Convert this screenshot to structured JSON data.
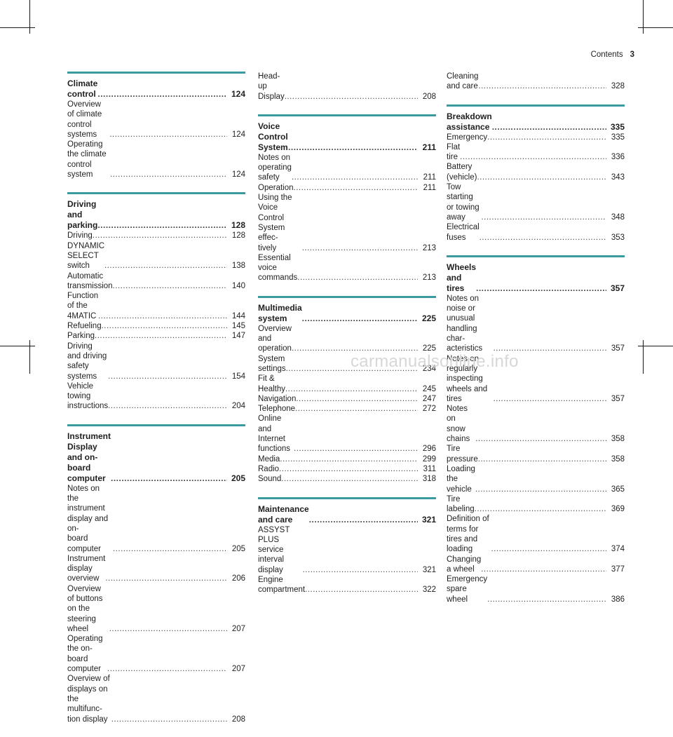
{
  "header": {
    "title": "Contents",
    "page": "3"
  },
  "columns": [
    [
      {
        "bar": true,
        "entries": [
          {
            "text": "Climate control",
            "page": "124",
            "bold": true
          },
          {
            "text": "Overview of climate control systems",
            "page": "124"
          },
          {
            "text": "Operating the climate control system",
            "page": "124"
          }
        ]
      },
      {
        "bar": true,
        "entries": [
          {
            "text": "Driving and parking",
            "page": "128",
            "bold": true
          },
          {
            "text": "Driving",
            "page": "128"
          },
          {
            "text": "DYNAMIC SELECT switch",
            "page": "138"
          },
          {
            "text": "Automatic transmission",
            "page": "140"
          },
          {
            "text": "Function of the 4MATIC",
            "page": "144"
          },
          {
            "text": "Refueling",
            "page": "145"
          },
          {
            "text": "Parking",
            "page": "147"
          },
          {
            "text": "Driving and driving safety systems",
            "page": "154"
          },
          {
            "text": "Vehicle towing instructions",
            "page": "204"
          }
        ]
      },
      {
        "bar": true,
        "entries": [
          {
            "text": "Instrument Display and on-board\ncomputer",
            "page": "205",
            "bold": true
          },
          {
            "text": "Notes on the instrument display and on-\nboard computer",
            "page": "205"
          },
          {
            "text": "Instrument display overview",
            "page": "206"
          },
          {
            "text": "Overview of buttons on the steering\nwheel",
            "page": "207"
          },
          {
            "text": "Operating the on-board computer",
            "page": "207"
          },
          {
            "text": "Overview of displays on the multifunc-\ntion display",
            "page": "208"
          }
        ]
      }
    ],
    [
      {
        "bar": false,
        "entries": [
          {
            "text": "Head-up Display",
            "page": "208"
          }
        ]
      },
      {
        "bar": true,
        "entries": [
          {
            "text": "Voice Control System",
            "page": "211",
            "bold": true
          },
          {
            "text": "Notes on operating safety",
            "page": "211"
          },
          {
            "text": "Operation",
            "page": "211"
          },
          {
            "text": "Using the Voice Control System effec-\ntively",
            "page": "213"
          },
          {
            "text": "Essential voice commands",
            "page": "213"
          }
        ]
      },
      {
        "bar": true,
        "entries": [
          {
            "text": "Multimedia system",
            "page": "225",
            "bold": true
          },
          {
            "text": "Overview and operation",
            "page": "225"
          },
          {
            "text": "System settings",
            "page": "234"
          },
          {
            "text": "Fit & Healthy",
            "page": "245"
          },
          {
            "text": "Navigation",
            "page": "247"
          },
          {
            "text": "Telephone",
            "page": "272"
          },
          {
            "text": "Online and Internet functions",
            "page": "296"
          },
          {
            "text": "Media",
            "page": "299"
          },
          {
            "text": "Radio",
            "page": "311"
          },
          {
            "text": "Sound",
            "page": "318"
          }
        ]
      },
      {
        "bar": true,
        "entries": [
          {
            "text": "Maintenance and care",
            "page": "321",
            "bold": true
          },
          {
            "text": "ASSYST PLUS service interval display",
            "page": "321"
          },
          {
            "text": "Engine compartment",
            "page": "322"
          }
        ]
      }
    ],
    [
      {
        "bar": false,
        "entries": [
          {
            "text": "Cleaning and care",
            "page": "328"
          }
        ]
      },
      {
        "bar": true,
        "entries": [
          {
            "text": "Breakdown assistance",
            "page": "335",
            "bold": true
          },
          {
            "text": "Emergency",
            "page": "335"
          },
          {
            "text": "Flat tire",
            "page": "336"
          },
          {
            "text": "Battery (vehicle)",
            "page": "343"
          },
          {
            "text": "Tow starting or towing away",
            "page": "348"
          },
          {
            "text": "Electrical fuses",
            "page": "353"
          }
        ]
      },
      {
        "bar": true,
        "entries": [
          {
            "text": "Wheels and tires",
            "page": "357",
            "bold": true
          },
          {
            "text": "Notes on noise or unusual handling char-\nacteristics",
            "page": "357"
          },
          {
            "text": "Notes on regularly inspecting wheels and\ntires",
            "page": "357"
          },
          {
            "text": "Notes on snow chains",
            "page": "358"
          },
          {
            "text": "Tire pressure",
            "page": "358"
          },
          {
            "text": "Loading the vehicle",
            "page": "365"
          },
          {
            "text": "Tire labeling",
            "page": "369"
          },
          {
            "text": "Definition of terms for tires and loading",
            "page": "374"
          },
          {
            "text": "Changing a wheel",
            "page": "377"
          },
          {
            "text": "Emergency spare wheel",
            "page": "386"
          }
        ]
      }
    ]
  ],
  "watermark": "carmanualsonline.info"
}
